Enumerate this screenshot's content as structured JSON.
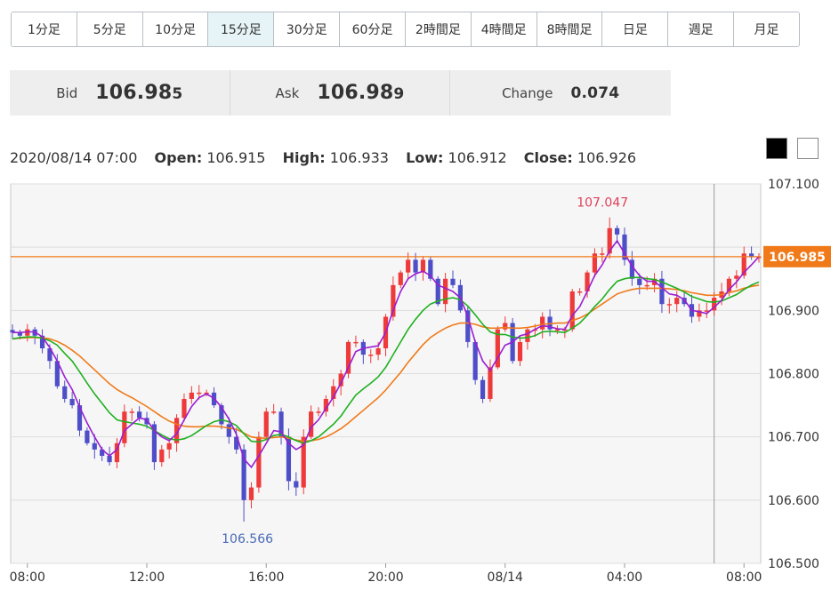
{
  "timeframes": [
    "1分足",
    "5分足",
    "10分足",
    "15分足",
    "30分足",
    "60分足",
    "2時間足",
    "4時間足",
    "8時間足",
    "日足",
    "週足",
    "月足"
  ],
  "active_timeframe": "15分足",
  "quote": {
    "bid_label": "Bid",
    "bid_main": "106.98",
    "bid_pip": "5",
    "ask_label": "Ask",
    "ask_main": "106.98",
    "ask_pip": "9",
    "change_label": "Change",
    "change_value": "0.074"
  },
  "ohlc": {
    "datetime": "2020/08/14 07:00",
    "open_label": "Open:",
    "open": "106.915",
    "high_label": "High:",
    "high": "106.933",
    "low_label": "Low:",
    "low": "106.912",
    "close_label": "Close:",
    "close": "106.926"
  },
  "colors": {
    "up": "#ee3a3a",
    "down": "#4e4ec8",
    "ma_short": "#9a1ed2",
    "ma_mid": "#20b020",
    "ma_long": "#f07a1a",
    "price_line": "#f07a1a",
    "grid": "#dddddd",
    "plot_bg": "#f6f6f6"
  },
  "chart_data": {
    "type": "candlestick",
    "ylim": [
      106.5,
      107.1
    ],
    "y_ticks": [
      "107.100",
      "106.900",
      "106.800",
      "106.700",
      "106.600",
      "106.500"
    ],
    "x_ticks": [
      "08:00",
      "12:00",
      "16:00",
      "20:00",
      "08/14",
      "04:00",
      "08:00"
    ],
    "x_tick_index": [
      2,
      18,
      34,
      50,
      66,
      82,
      98
    ],
    "current_price": 106.985,
    "current_price_label": "106.985",
    "high_label": "107.047",
    "high_index": 80,
    "low_label": "106.566",
    "low_index": 31,
    "cursor_index": 94,
    "closes": [
      106.865,
      106.86,
      106.87,
      106.86,
      106.84,
      106.82,
      106.78,
      106.76,
      106.75,
      106.71,
      106.69,
      106.68,
      106.67,
      106.66,
      106.69,
      106.74,
      106.74,
      106.73,
      106.72,
      106.66,
      106.68,
      106.69,
      106.73,
      106.76,
      106.77,
      106.77,
      106.77,
      106.75,
      106.72,
      106.7,
      106.68,
      106.6,
      106.62,
      106.7,
      106.74,
      106.74,
      106.7,
      106.63,
      106.62,
      106.7,
      106.74,
      106.74,
      106.76,
      106.78,
      106.8,
      106.85,
      106.85,
      106.83,
      106.83,
      106.84,
      106.89,
      106.94,
      106.96,
      106.98,
      106.96,
      106.98,
      106.95,
      106.91,
      106.95,
      106.94,
      106.9,
      106.85,
      106.79,
      106.76,
      106.81,
      106.87,
      106.88,
      106.82,
      106.85,
      106.87,
      106.87,
      106.89,
      106.87,
      106.87,
      106.87,
      106.93,
      106.93,
      106.96,
      106.99,
      106.99,
      107.03,
      107.02,
      106.98,
      106.95,
      106.94,
      106.94,
      106.95,
      106.91,
      106.91,
      106.92,
      106.91,
      106.89,
      106.9,
      106.9,
      106.92,
      106.93,
      106.95,
      106.955,
      106.99,
      106.985,
      106.985
    ],
    "ma_short": [
      106.865,
      106.865,
      106.866,
      106.866,
      106.858,
      106.841,
      106.82,
      106.795,
      106.775,
      106.747,
      106.722,
      106.7,
      106.68,
      106.67,
      106.68,
      106.71,
      106.72,
      106.73,
      106.727,
      106.71,
      106.7,
      106.694,
      106.705,
      106.727,
      106.748,
      106.762,
      106.768,
      106.761,
      106.747,
      106.728,
      106.704,
      106.665,
      106.652,
      106.67,
      106.69,
      106.71,
      106.708,
      106.69,
      106.68,
      106.687,
      106.715,
      106.727,
      106.745,
      106.763,
      106.785,
      106.81,
      106.835,
      106.84,
      106.842,
      106.844,
      106.865,
      106.9,
      106.93,
      106.95,
      106.958,
      106.962,
      106.955,
      106.94,
      106.935,
      106.93,
      106.92,
      106.89,
      106.85,
      106.82,
      106.805,
      106.825,
      106.845,
      106.85,
      106.86,
      106.863,
      106.87,
      106.876,
      106.874,
      106.871,
      106.87,
      106.892,
      106.906,
      106.93,
      106.955,
      106.972,
      106.994,
      107.01,
      106.99,
      106.97,
      106.955,
      106.946,
      106.946,
      106.936,
      106.926,
      106.924,
      106.917,
      106.9,
      106.898,
      106.895,
      106.905,
      106.916,
      106.933,
      106.945,
      106.96,
      106.972,
      106.985
    ],
    "ma_mid": [
      106.855,
      106.857,
      106.858,
      106.858,
      106.856,
      106.852,
      106.845,
      106.832,
      106.82,
      106.803,
      106.785,
      106.768,
      106.753,
      106.738,
      106.727,
      106.724,
      106.722,
      106.72,
      106.717,
      106.71,
      106.703,
      106.697,
      106.695,
      106.697,
      106.702,
      106.71,
      106.718,
      106.724,
      106.727,
      106.724,
      106.718,
      106.705,
      106.693,
      106.692,
      106.696,
      106.702,
      106.704,
      106.7,
      106.694,
      106.69,
      106.694,
      106.7,
      106.71,
      106.72,
      106.733,
      106.75,
      106.766,
      106.776,
      106.785,
      106.795,
      106.81,
      106.83,
      106.85,
      106.87,
      106.886,
      106.9,
      106.91,
      106.915,
      106.918,
      106.92,
      106.917,
      106.907,
      106.893,
      106.878,
      106.866,
      106.862,
      106.862,
      106.858,
      106.856,
      106.857,
      106.86,
      106.866,
      106.867,
      106.866,
      106.865,
      106.872,
      106.88,
      106.892,
      106.906,
      106.918,
      106.933,
      106.946,
      106.95,
      106.952,
      106.952,
      106.95,
      106.949,
      106.945,
      106.94,
      106.935,
      106.929,
      106.922,
      106.918,
      106.914,
      106.913,
      106.915,
      106.92,
      106.925,
      106.933,
      106.94,
      106.945
    ],
    "ma_long": [
      106.855,
      106.856,
      106.857,
      106.857,
      106.857,
      106.855,
      106.851,
      106.845,
      106.837,
      106.828,
      106.817,
      106.806,
      106.795,
      106.784,
      106.775,
      106.768,
      106.762,
      106.755,
      106.748,
      106.74,
      106.732,
      106.725,
      106.72,
      106.717,
      106.716,
      106.716,
      106.717,
      106.717,
      106.716,
      106.714,
      106.712,
      106.706,
      106.7,
      106.698,
      106.698,
      106.699,
      106.7,
      106.698,
      106.695,
      106.693,
      106.694,
      106.696,
      106.7,
      106.706,
      106.713,
      106.722,
      106.732,
      106.742,
      106.752,
      106.762,
      106.774,
      106.788,
      106.802,
      106.818,
      106.832,
      106.846,
      106.857,
      106.865,
      106.872,
      106.877,
      106.88,
      106.88,
      106.878,
      106.874,
      106.872,
      106.872,
      106.873,
      106.872,
      106.872,
      106.873,
      106.875,
      106.878,
      106.879,
      106.88,
      106.88,
      106.884,
      106.888,
      106.894,
      106.902,
      106.91,
      106.918,
      106.926,
      106.93,
      106.933,
      106.935,
      106.935,
      106.935,
      106.935,
      106.934,
      106.933,
      106.931,
      106.928,
      106.926,
      106.924,
      106.924,
      106.925,
      106.928,
      106.931,
      106.935,
      106.938,
      106.94
    ]
  }
}
